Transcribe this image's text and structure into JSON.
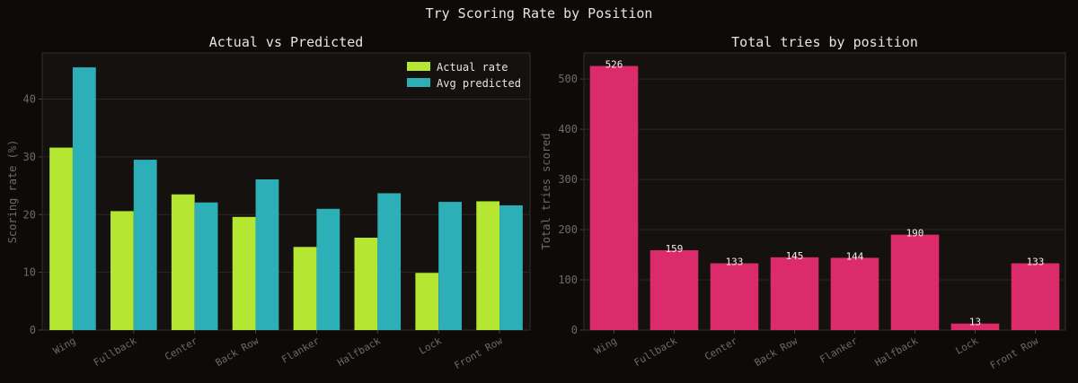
{
  "figure": {
    "title": "Try Scoring Rate by Position"
  },
  "chart_data": [
    {
      "type": "bar",
      "title": "Actual vs Predicted",
      "xlabel": "",
      "ylabel": "Scoring rate (%)",
      "categories": [
        "Wing",
        "Fullback",
        "Center",
        "Back Row",
        "Flanker",
        "Halfback",
        "Lock",
        "Front Row"
      ],
      "series": [
        {
          "name": "Actual rate",
          "color": "#b5e632",
          "values": [
            31.6,
            20.6,
            23.5,
            19.6,
            14.4,
            16.0,
            9.9,
            22.3
          ]
        },
        {
          "name": "Avg predicted",
          "color": "#2dafb8",
          "values": [
            45.5,
            29.5,
            22.1,
            26.1,
            21.0,
            23.7,
            22.2,
            21.6
          ]
        }
      ],
      "ylim": [
        0,
        48
      ],
      "yticks": [
        0,
        10,
        20,
        30,
        40
      ],
      "grid": true,
      "legend": "top-right"
    },
    {
      "type": "bar",
      "title": "Total tries by position",
      "xlabel": "",
      "ylabel": "Total tries scored",
      "categories": [
        "Wing",
        "Fullback",
        "Center",
        "Back Row",
        "Flanker",
        "Halfback",
        "Lock",
        "Front Row"
      ],
      "series": [
        {
          "color": "#db2b6b",
          "values": [
            526,
            159,
            133,
            145,
            144,
            190,
            13,
            133
          ]
        }
      ],
      "data_labels": [
        "526",
        "159",
        "133",
        "145",
        "144",
        "190",
        "13",
        "133"
      ],
      "ylim": [
        0,
        552
      ],
      "yticks": [
        0,
        100,
        200,
        300,
        400,
        500
      ],
      "grid": true,
      "legend": "none"
    }
  ]
}
